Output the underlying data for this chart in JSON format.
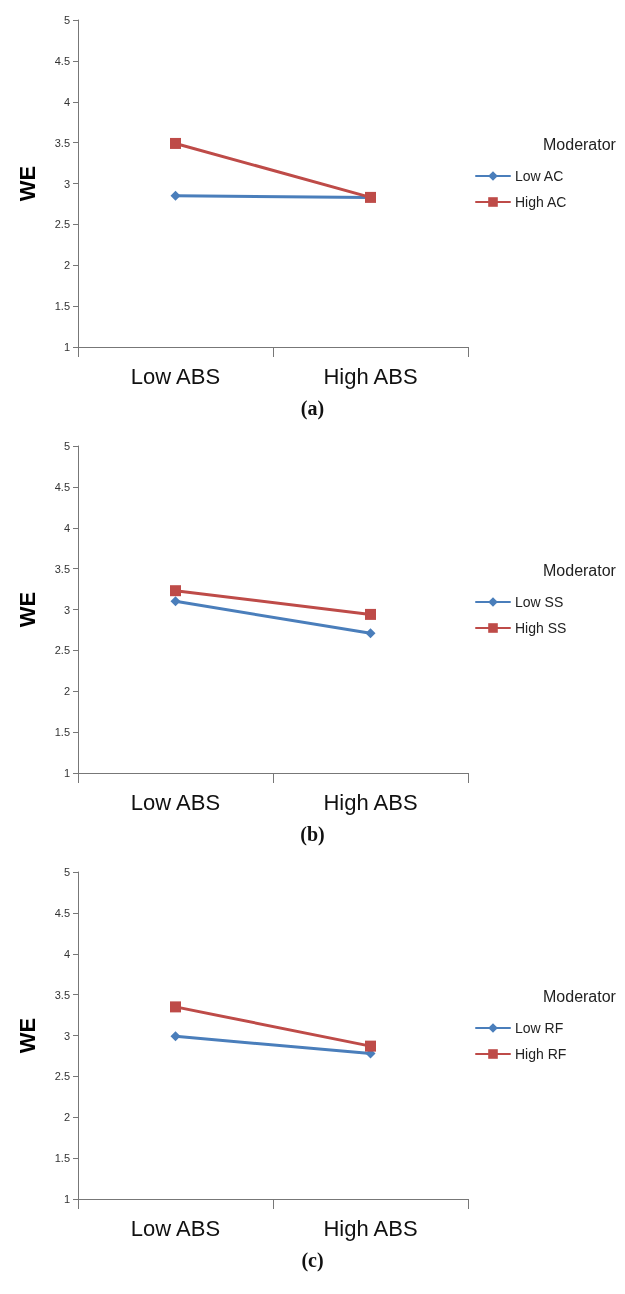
{
  "chart_data": [
    {
      "type": "line",
      "categories": [
        "Low ABS",
        "High ABS"
      ],
      "ylabel": "WE",
      "ylim": [
        1,
        5
      ],
      "yticks": [
        1,
        1.5,
        2,
        2.5,
        3,
        3.5,
        4,
        4.5,
        5
      ],
      "grid": false,
      "legend": "right",
      "legend_title": "Moderator",
      "line_style": "solid",
      "annotations": [
        "(a)"
      ],
      "series": [
        {
          "name": "Low AC",
          "color": "#4a7ebb",
          "marker": "diamond",
          "values": [
            2.85,
            2.83
          ]
        },
        {
          "name": "High AC",
          "color": "#be4b48",
          "marker": "square",
          "values": [
            3.49,
            2.83
          ]
        }
      ]
    },
    {
      "type": "line",
      "categories": [
        "Low ABS",
        "High ABS"
      ],
      "ylabel": "WE",
      "ylim": [
        1,
        5
      ],
      "yticks": [
        1,
        1.5,
        2,
        2.5,
        3,
        3.5,
        4,
        4.5,
        5
      ],
      "grid": false,
      "legend": "right",
      "legend_title": "Moderator",
      "line_style": "solid",
      "annotations": [
        "(b)"
      ],
      "series": [
        {
          "name": "Low SS",
          "color": "#4a7ebb",
          "marker": "diamond",
          "values": [
            3.1,
            2.71
          ]
        },
        {
          "name": "High SS",
          "color": "#be4b48",
          "marker": "square",
          "values": [
            3.23,
            2.94
          ]
        }
      ]
    },
    {
      "type": "line",
      "categories": [
        "Low ABS",
        "High ABS"
      ],
      "ylabel": "WE",
      "ylim": [
        1,
        5
      ],
      "yticks": [
        1,
        1.5,
        2,
        2.5,
        3,
        3.5,
        4,
        4.5,
        5
      ],
      "grid": false,
      "legend": "right",
      "legend_title": "Moderator",
      "line_style": "solid",
      "annotations": [
        "(c)"
      ],
      "series": [
        {
          "name": "Low RF",
          "color": "#4a7ebb",
          "marker": "diamond",
          "values": [
            2.99,
            2.78
          ]
        },
        {
          "name": "High RF",
          "color": "#be4b48",
          "marker": "square",
          "values": [
            3.35,
            2.87
          ]
        }
      ]
    }
  ]
}
